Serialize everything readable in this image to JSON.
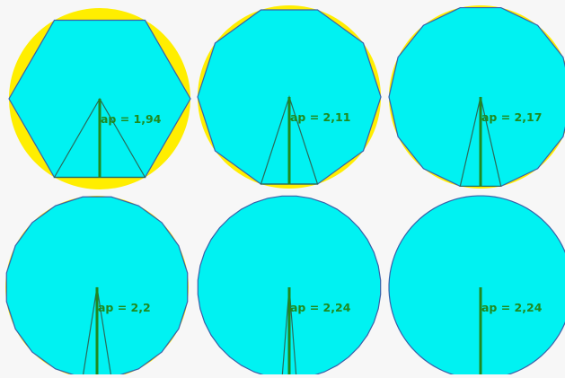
{
  "colors": {
    "background": "#f7f7f7",
    "circle_fill": "#ffee00",
    "polygon_fill": "#00f2f2",
    "outline": "#3a5fa8",
    "apothem": "#1f8a1f",
    "triangle": "#2a6a5a",
    "label": "#1f8a1f"
  },
  "panels": [
    {
      "sides": 6,
      "label": "ap = 1,94"
    },
    {
      "sides": 10,
      "label": "ap = 2,11"
    },
    {
      "sides": 14,
      "label": "ap = 2,17"
    },
    {
      "sides": 20,
      "label": "ap = 2,2"
    },
    {
      "sides": 40,
      "label": "ap = 2,24"
    },
    {
      "sides": 100,
      "label": "ap = 2,24",
      "no_triangle": true
    }
  ]
}
